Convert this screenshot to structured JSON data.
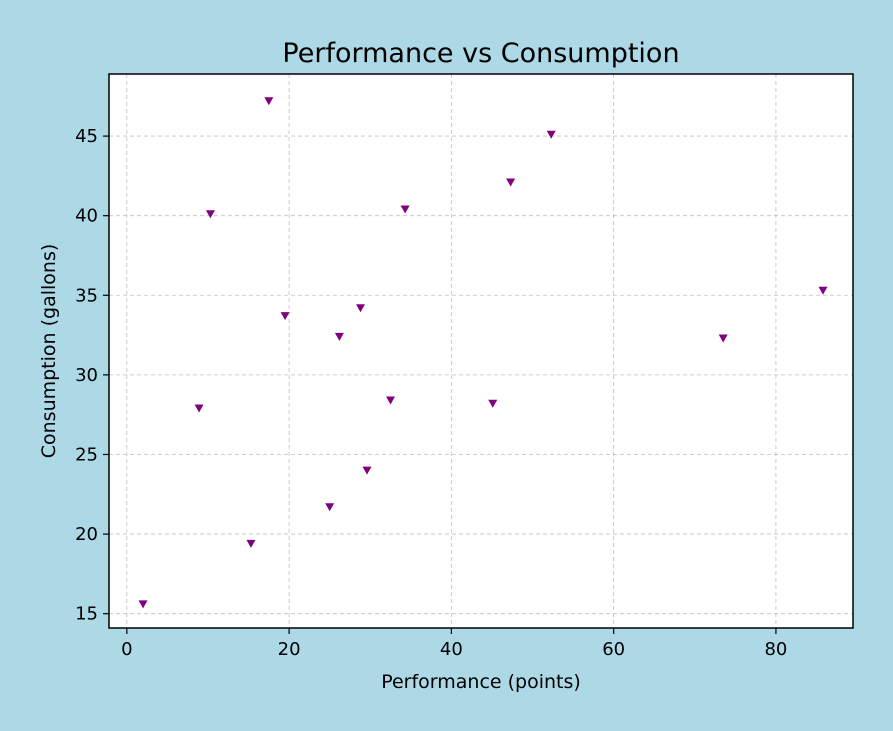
{
  "chart_data": {
    "type": "scatter",
    "title": "Performance vs Consumption",
    "xlabel": "Performance (points)",
    "ylabel": "Consumption (gallons)",
    "xlim": [
      -2.2,
      89.5
    ],
    "ylim": [
      14.1,
      48.9
    ],
    "xticks": [
      0,
      20,
      40,
      60,
      80
    ],
    "yticks": [
      15,
      20,
      25,
      30,
      35,
      40,
      45
    ],
    "grid": true,
    "marker": "triangle-down",
    "colors": {
      "page_background": "#add8e6",
      "plot_background": "#ffffff",
      "marker": "#800080",
      "grid": "#c0c0c0"
    },
    "points": [
      {
        "x": 2.0,
        "y": 15.6
      },
      {
        "x": 8.9,
        "y": 27.9
      },
      {
        "x": 10.3,
        "y": 40.1
      },
      {
        "x": 15.3,
        "y": 19.4
      },
      {
        "x": 17.5,
        "y": 47.2
      },
      {
        "x": 19.5,
        "y": 33.7
      },
      {
        "x": 25.0,
        "y": 21.7
      },
      {
        "x": 26.2,
        "y": 32.4
      },
      {
        "x": 28.8,
        "y": 34.2
      },
      {
        "x": 29.6,
        "y": 24.0
      },
      {
        "x": 32.5,
        "y": 28.4
      },
      {
        "x": 34.3,
        "y": 40.4
      },
      {
        "x": 45.1,
        "y": 28.2
      },
      {
        "x": 47.3,
        "y": 42.1
      },
      {
        "x": 52.3,
        "y": 45.1
      },
      {
        "x": 73.5,
        "y": 32.3
      },
      {
        "x": 85.8,
        "y": 35.3
      }
    ]
  }
}
